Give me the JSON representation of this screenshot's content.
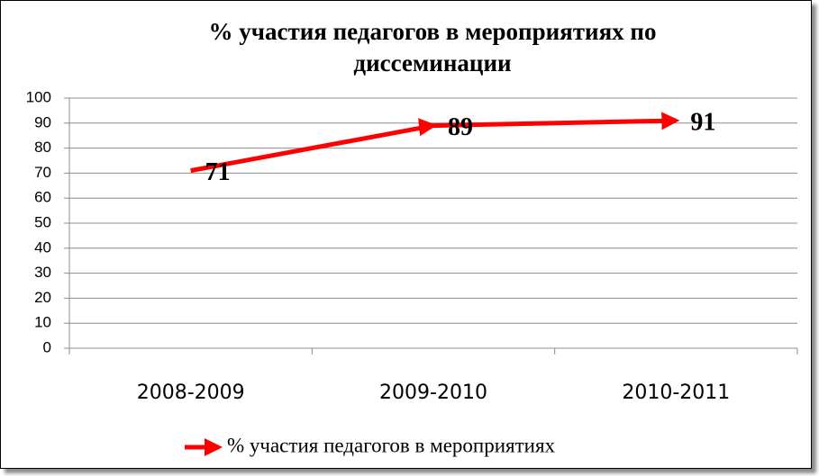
{
  "chart_data": {
    "type": "line",
    "title": "% участия педагогов в мероприятиях по диссеминации",
    "categories": [
      "2008-2009",
      "2009-2010",
      "2010-2011"
    ],
    "series": [
      {
        "name": "% участия педагогов в мероприятиях",
        "color": "#ff0000",
        "values": [
          71,
          89,
          91
        ]
      }
    ],
    "ylim": [
      0,
      100
    ],
    "yticks": [
      0,
      10,
      20,
      30,
      40,
      50,
      60,
      70,
      80,
      90,
      100
    ],
    "grid": true,
    "legend": "bottom"
  }
}
